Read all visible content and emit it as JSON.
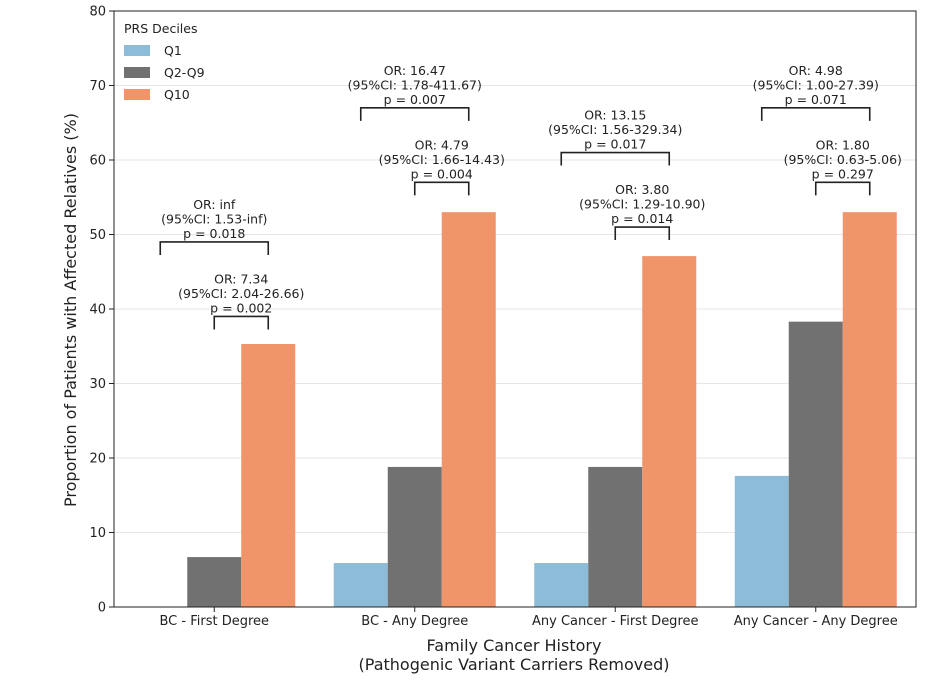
{
  "chart_data": {
    "type": "bar",
    "title": "",
    "xlabel": "Family Cancer History",
    "xlabel_line2": "(Pathogenic Variant Carriers Removed)",
    "ylabel": "Proportion of Patients with Affected Relatives (%)",
    "ylim": [
      0,
      80
    ],
    "yticks": [
      0,
      10,
      20,
      30,
      40,
      50,
      60,
      70,
      80
    ],
    "grid": "y",
    "legend_title": "PRS Deciles",
    "legend_position": "top-left",
    "categories": [
      "BC - First Degree",
      "BC - Any Degree",
      "Any Cancer - First Degree",
      "Any Cancer - Any Degree"
    ],
    "series": [
      {
        "name": "Q1",
        "color": "#8dbcd9",
        "values": [
          0,
          5.9,
          5.9,
          17.6
        ]
      },
      {
        "name": "Q2-Q9",
        "color": "#717171",
        "values": [
          6.7,
          18.8,
          18.8,
          38.3
        ]
      },
      {
        "name": "Q10",
        "color": "#f0946a",
        "values": [
          35.3,
          53.0,
          47.1,
          53.0
        ]
      }
    ],
    "annotations": [
      {
        "category": 0,
        "from_series": 0,
        "to_series": 2,
        "bracket_y": 49,
        "lines": [
          "OR: inf",
          "(95%CI: 1.53-inf)",
          "p = 0.018"
        ]
      },
      {
        "category": 0,
        "from_series": 1,
        "to_series": 2,
        "bracket_y": 39,
        "lines": [
          "OR: 7.34",
          "(95%CI: 2.04-26.66)",
          "p = 0.002"
        ]
      },
      {
        "category": 1,
        "from_series": 0,
        "to_series": 2,
        "bracket_y": 67,
        "lines": [
          "OR: 16.47",
          "(95%CI: 1.78-411.67)",
          "p = 0.007"
        ]
      },
      {
        "category": 1,
        "from_series": 1,
        "to_series": 2,
        "bracket_y": 57,
        "lines": [
          "OR: 4.79",
          "(95%CI: 1.66-14.43)",
          "p = 0.004"
        ]
      },
      {
        "category": 2,
        "from_series": 0,
        "to_series": 2,
        "bracket_y": 61,
        "lines": [
          "OR: 13.15",
          "(95%CI: 1.56-329.34)",
          "p = 0.017"
        ]
      },
      {
        "category": 2,
        "from_series": 1,
        "to_series": 2,
        "bracket_y": 51,
        "lines": [
          "OR: 3.80",
          "(95%CI: 1.29-10.90)",
          "p = 0.014"
        ]
      },
      {
        "category": 3,
        "from_series": 0,
        "to_series": 2,
        "bracket_y": 67,
        "lines": [
          "OR: 4.98",
          "(95%CI: 1.00-27.39)",
          "p = 0.071"
        ]
      },
      {
        "category": 3,
        "from_series": 1,
        "to_series": 2,
        "bracket_y": 57,
        "lines": [
          "OR: 1.80",
          "(95%CI: 0.63-5.06)",
          "p = 0.297"
        ]
      }
    ]
  }
}
